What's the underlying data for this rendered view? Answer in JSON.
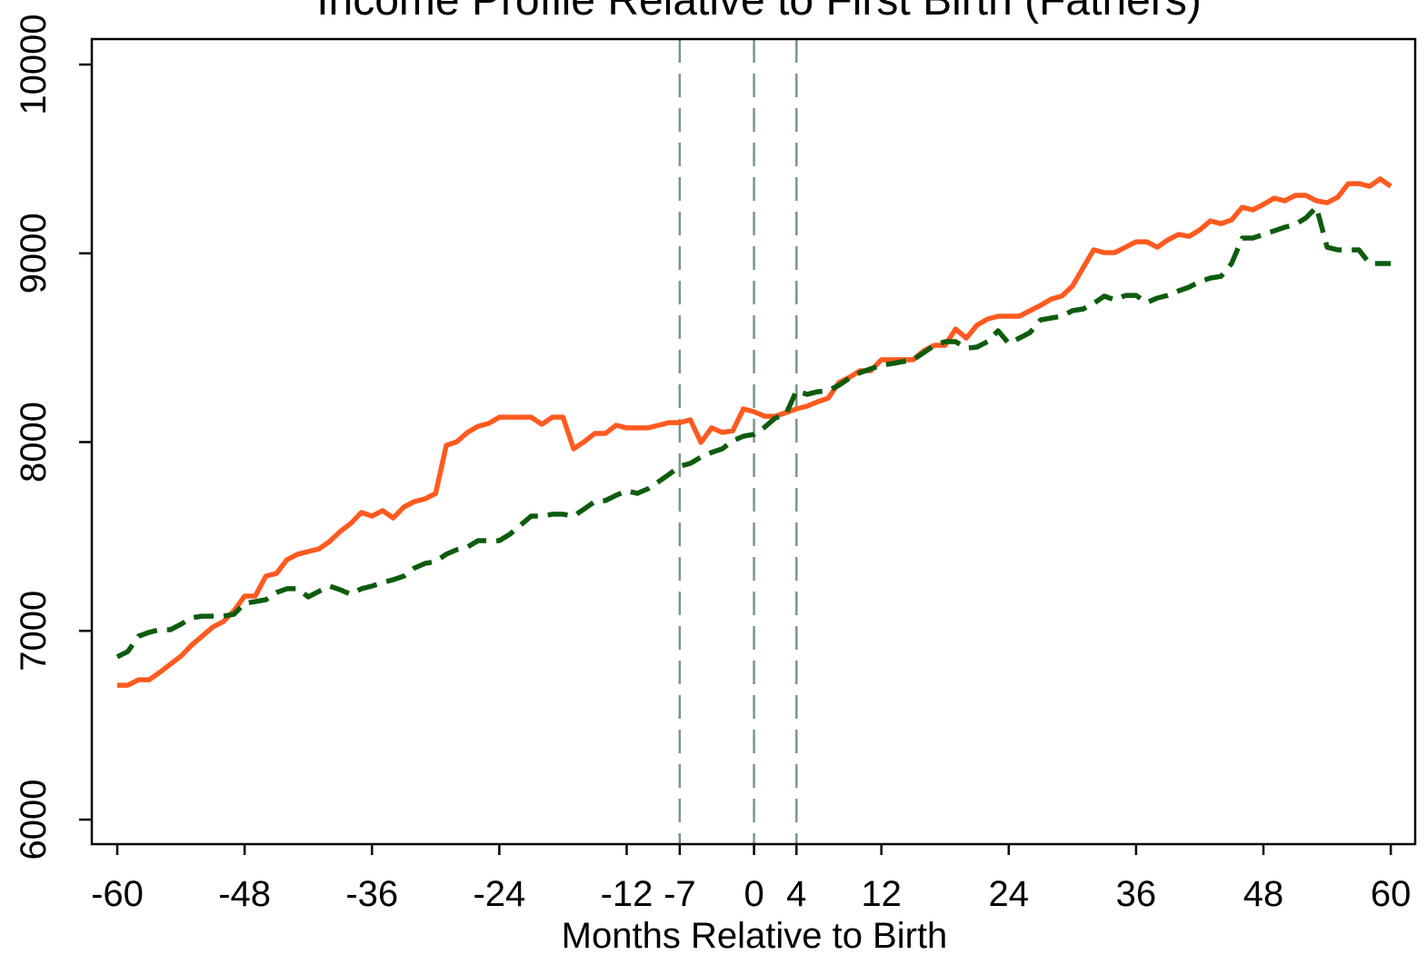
{
  "chart_data": {
    "type": "line",
    "title": "Income Profile Relative to First Birth (Fathers)",
    "x_label": "Months Relative to Birth",
    "x": [
      -60,
      -59,
      -58,
      -57,
      -56,
      -55,
      -54,
      -53,
      -52,
      -51,
      -50,
      -49,
      -48,
      -47,
      -46,
      -45,
      -44,
      -43,
      -42,
      -41,
      -40,
      -39,
      -38,
      -37,
      -36,
      -35,
      -34,
      -33,
      -32,
      -31,
      -30,
      -29,
      -28,
      -27,
      -26,
      -25,
      -24,
      -23,
      -22,
      -21,
      -20,
      -19,
      -18,
      -17,
      -16,
      -15,
      -14,
      -13,
      -12,
      -11,
      -10,
      -9,
      -8,
      -7,
      -6,
      -5,
      -4,
      -3,
      -2,
      -1,
      0,
      1,
      2,
      3,
      4,
      5,
      6,
      7,
      8,
      9,
      10,
      11,
      12,
      13,
      14,
      15,
      16,
      17,
      18,
      19,
      20,
      21,
      22,
      23,
      24,
      25,
      26,
      27,
      28,
      29,
      30,
      31,
      32,
      33,
      34,
      35,
      36,
      37,
      38,
      39,
      40,
      41,
      42,
      43,
      44,
      45,
      46,
      47,
      48,
      49,
      50,
      51,
      52,
      53,
      54,
      55,
      56,
      57,
      58,
      59,
      60
    ],
    "series": [
      {
        "color": "#ff5a1f",
        "dash": "solid",
        "values": [
          6712,
          6712,
          6741,
          6741,
          6780,
          6823,
          6866,
          6924,
          6972,
          7020,
          7049,
          7107,
          7184,
          7184,
          7290,
          7304,
          7377,
          7406,
          7420,
          7434,
          7473,
          7526,
          7569,
          7627,
          7608,
          7637,
          7598,
          7656,
          7685,
          7699,
          7728,
          7983,
          8002,
          8051,
          8084,
          8099,
          8132,
          8132,
          8132,
          8132,
          8094,
          8132,
          8132,
          7964,
          8002,
          8046,
          8046,
          8089,
          8075,
          8075,
          8075,
          8089,
          8103,
          8103,
          8118,
          7998,
          8075,
          8051,
          8060,
          8176,
          8161,
          8137,
          8137,
          8156,
          8176,
          8190,
          8214,
          8233,
          8315,
          8344,
          8378,
          8378,
          8436,
          8436,
          8436,
          8436,
          8484,
          8513,
          8513,
          8599,
          8551,
          8619,
          8652,
          8667,
          8667,
          8667,
          8696,
          8724,
          8758,
          8773,
          8826,
          8922,
          9018,
          9004,
          9004,
          9032,
          9061,
          9061,
          9032,
          9071,
          9100,
          9090,
          9124,
          9172,
          9157,
          9177,
          9244,
          9230,
          9259,
          9292,
          9278,
          9307,
          9307,
          9278,
          9268,
          9297,
          9369,
          9369,
          9355,
          9394,
          9355
        ]
      },
      {
        "color": "#0d5c0d",
        "dash": "dashed",
        "values": [
          6862,
          6891,
          6972,
          6992,
          7006,
          7006,
          7035,
          7069,
          7078,
          7078,
          7078,
          7088,
          7146,
          7155,
          7165,
          7203,
          7223,
          7223,
          7180,
          7209,
          7237,
          7218,
          7194,
          7223,
          7237,
          7256,
          7271,
          7290,
          7333,
          7357,
          7367,
          7406,
          7430,
          7444,
          7478,
          7478,
          7478,
          7512,
          7560,
          7608,
          7608,
          7618,
          7618,
          7608,
          7646,
          7685,
          7690,
          7718,
          7742,
          7728,
          7752,
          7790,
          7829,
          7872,
          7887,
          7920,
          7945,
          7964,
          8007,
          8031,
          8041,
          8079,
          8127,
          8147,
          8272,
          8253,
          8267,
          8272,
          8301,
          8339,
          8368,
          8388,
          8407,
          8416,
          8426,
          8436,
          8474,
          8513,
          8532,
          8532,
          8498,
          8503,
          8532,
          8590,
          8523,
          8551,
          8580,
          8647,
          8657,
          8667,
          8696,
          8705,
          8734,
          8773,
          8753,
          8777,
          8777,
          8739,
          8763,
          8777,
          8801,
          8821,
          8850,
          8869,
          8878,
          8946,
          9081,
          9081,
          9100,
          9119,
          9138,
          9153,
          9187,
          9244,
          9032,
          9018,
          9018,
          9018,
          8946,
          8946,
          8946
        ]
      }
    ],
    "vlines": [
      -7,
      0,
      4
    ],
    "vline_color": "#7a9688",
    "xlim": [
      -62.4,
      62.3
    ],
    "xticks": [
      -60,
      -48,
      -36,
      -24,
      -12,
      -7,
      0,
      4,
      12,
      24,
      36,
      48,
      60
    ],
    "ylim": [
      5870,
      10135
    ],
    "yticks": [
      6000,
      7000,
      8000,
      9000,
      10000
    ],
    "grid": false
  }
}
